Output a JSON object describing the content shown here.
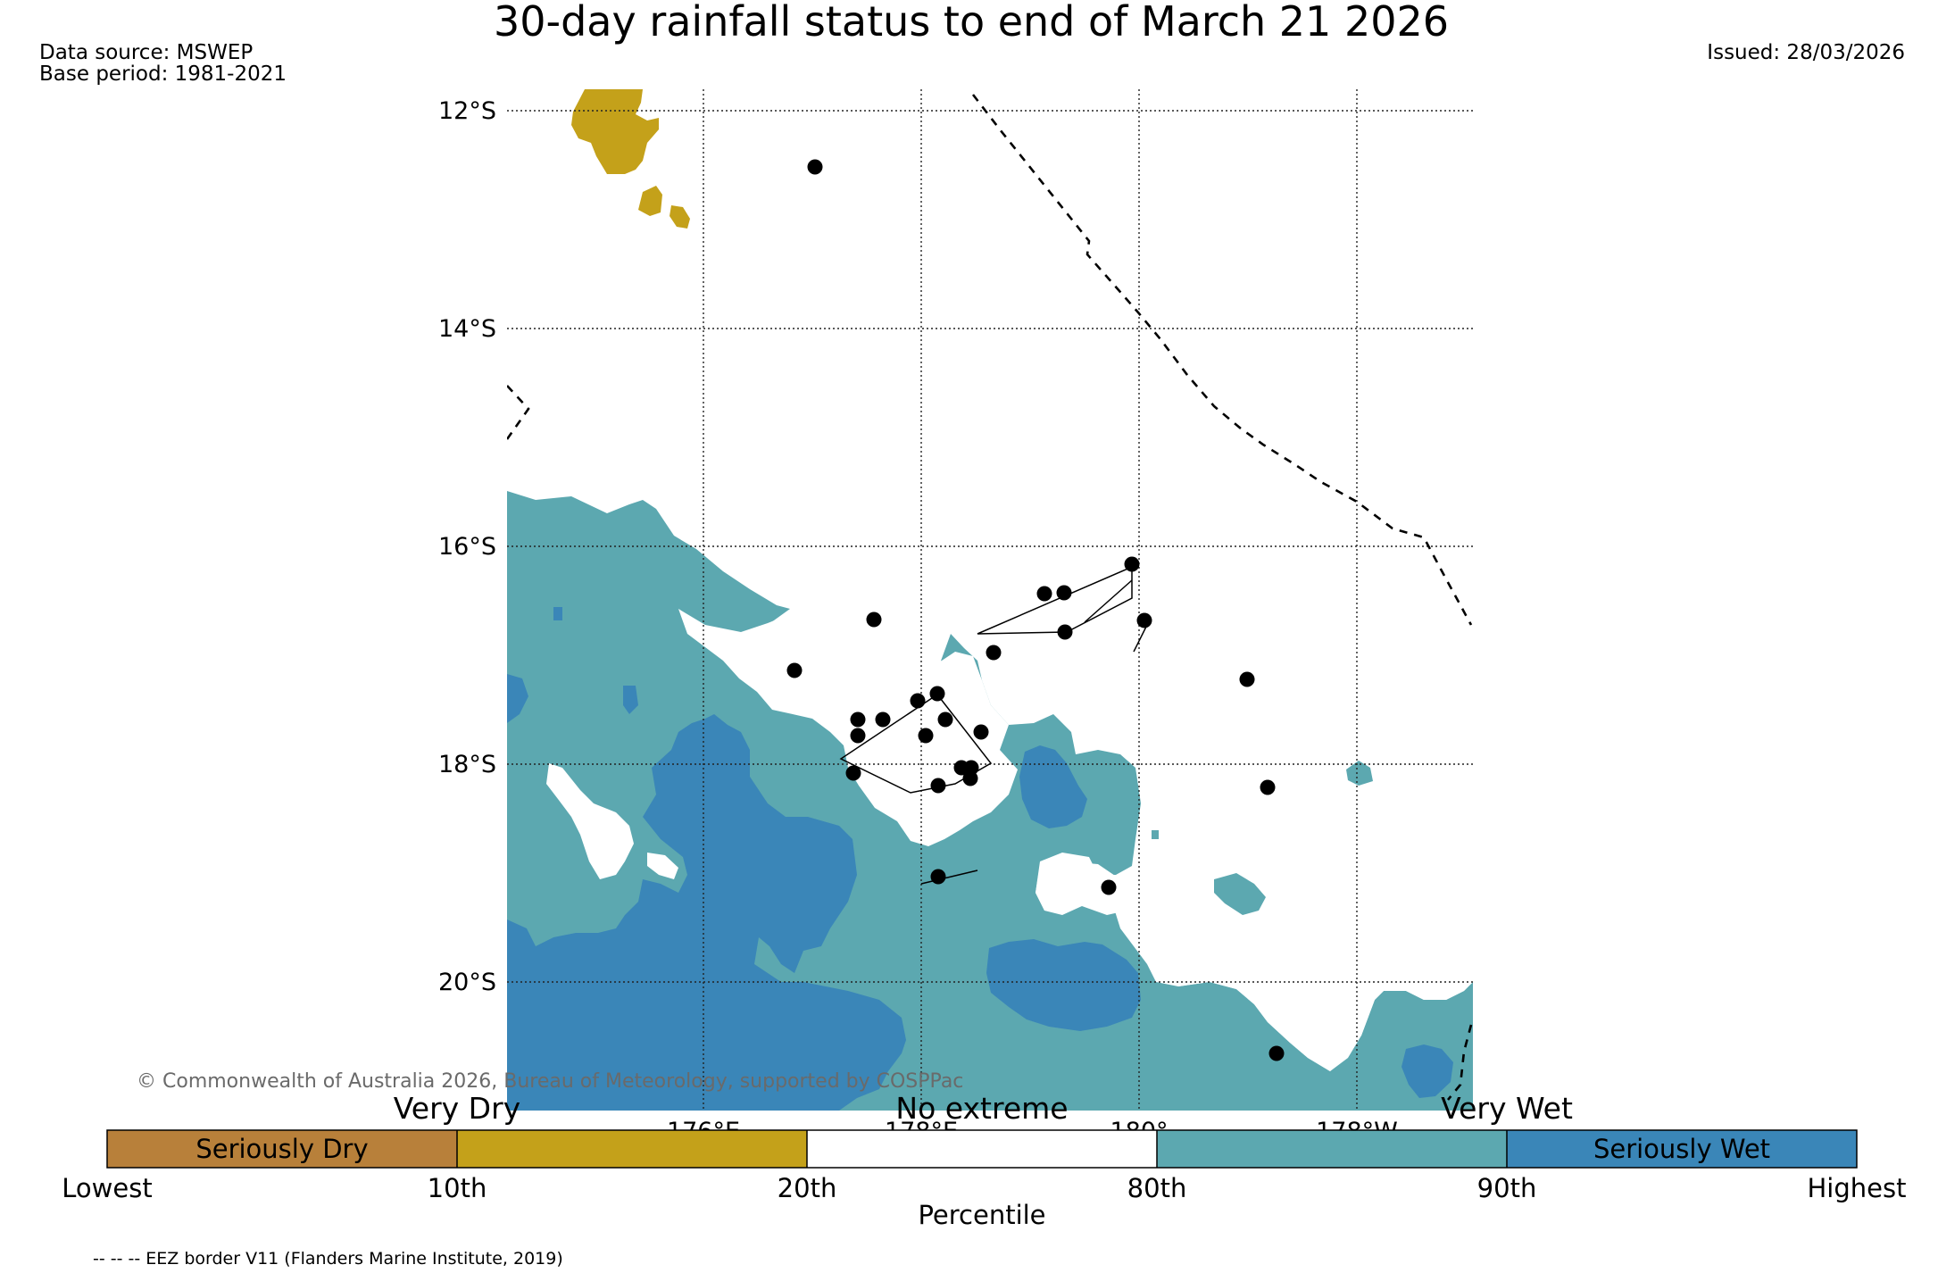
{
  "title": "30-day rainfall status to end of March 21 2026",
  "data_source": "Data source: MSWEP",
  "base_period": "Base period: 1981-2021",
  "issued": "Issued: 28/03/2026",
  "copyright": "© Commonwealth of Australia 2026, Bureau of Meteorology, supported by COSPPac",
  "lat_labels": [
    "12°S",
    "14°S",
    "16°S",
    "18°S",
    "20°S"
  ],
  "lon_labels": [
    "176°E",
    "178°E",
    "180°",
    "178°W"
  ],
  "legend": {
    "categories": [
      {
        "label": "Seriously Dry",
        "color": "#b8803a"
      },
      {
        "label": "",
        "color": "#c4a11a"
      },
      {
        "label": "",
        "color": "#ffffff"
      },
      {
        "label": "",
        "color": "#5ca8b0"
      },
      {
        "label": "Seriously Wet",
        "color": "#3a86b8"
      }
    ],
    "top_labels": [
      "Very Dry",
      "No extreme",
      "Very Wet"
    ],
    "ticks": [
      "Lowest",
      "10th",
      "20th",
      "80th",
      "90th",
      "Highest"
    ],
    "axis_label": "Percentile"
  },
  "footnote": "-- -- -- EEZ border V11 (Flanders Marine Institute, 2019)",
  "colors": {
    "very_dry": "#c4a11a",
    "very_wet": "#5ca8b0",
    "seriously_wet": "#3a86b8"
  }
}
